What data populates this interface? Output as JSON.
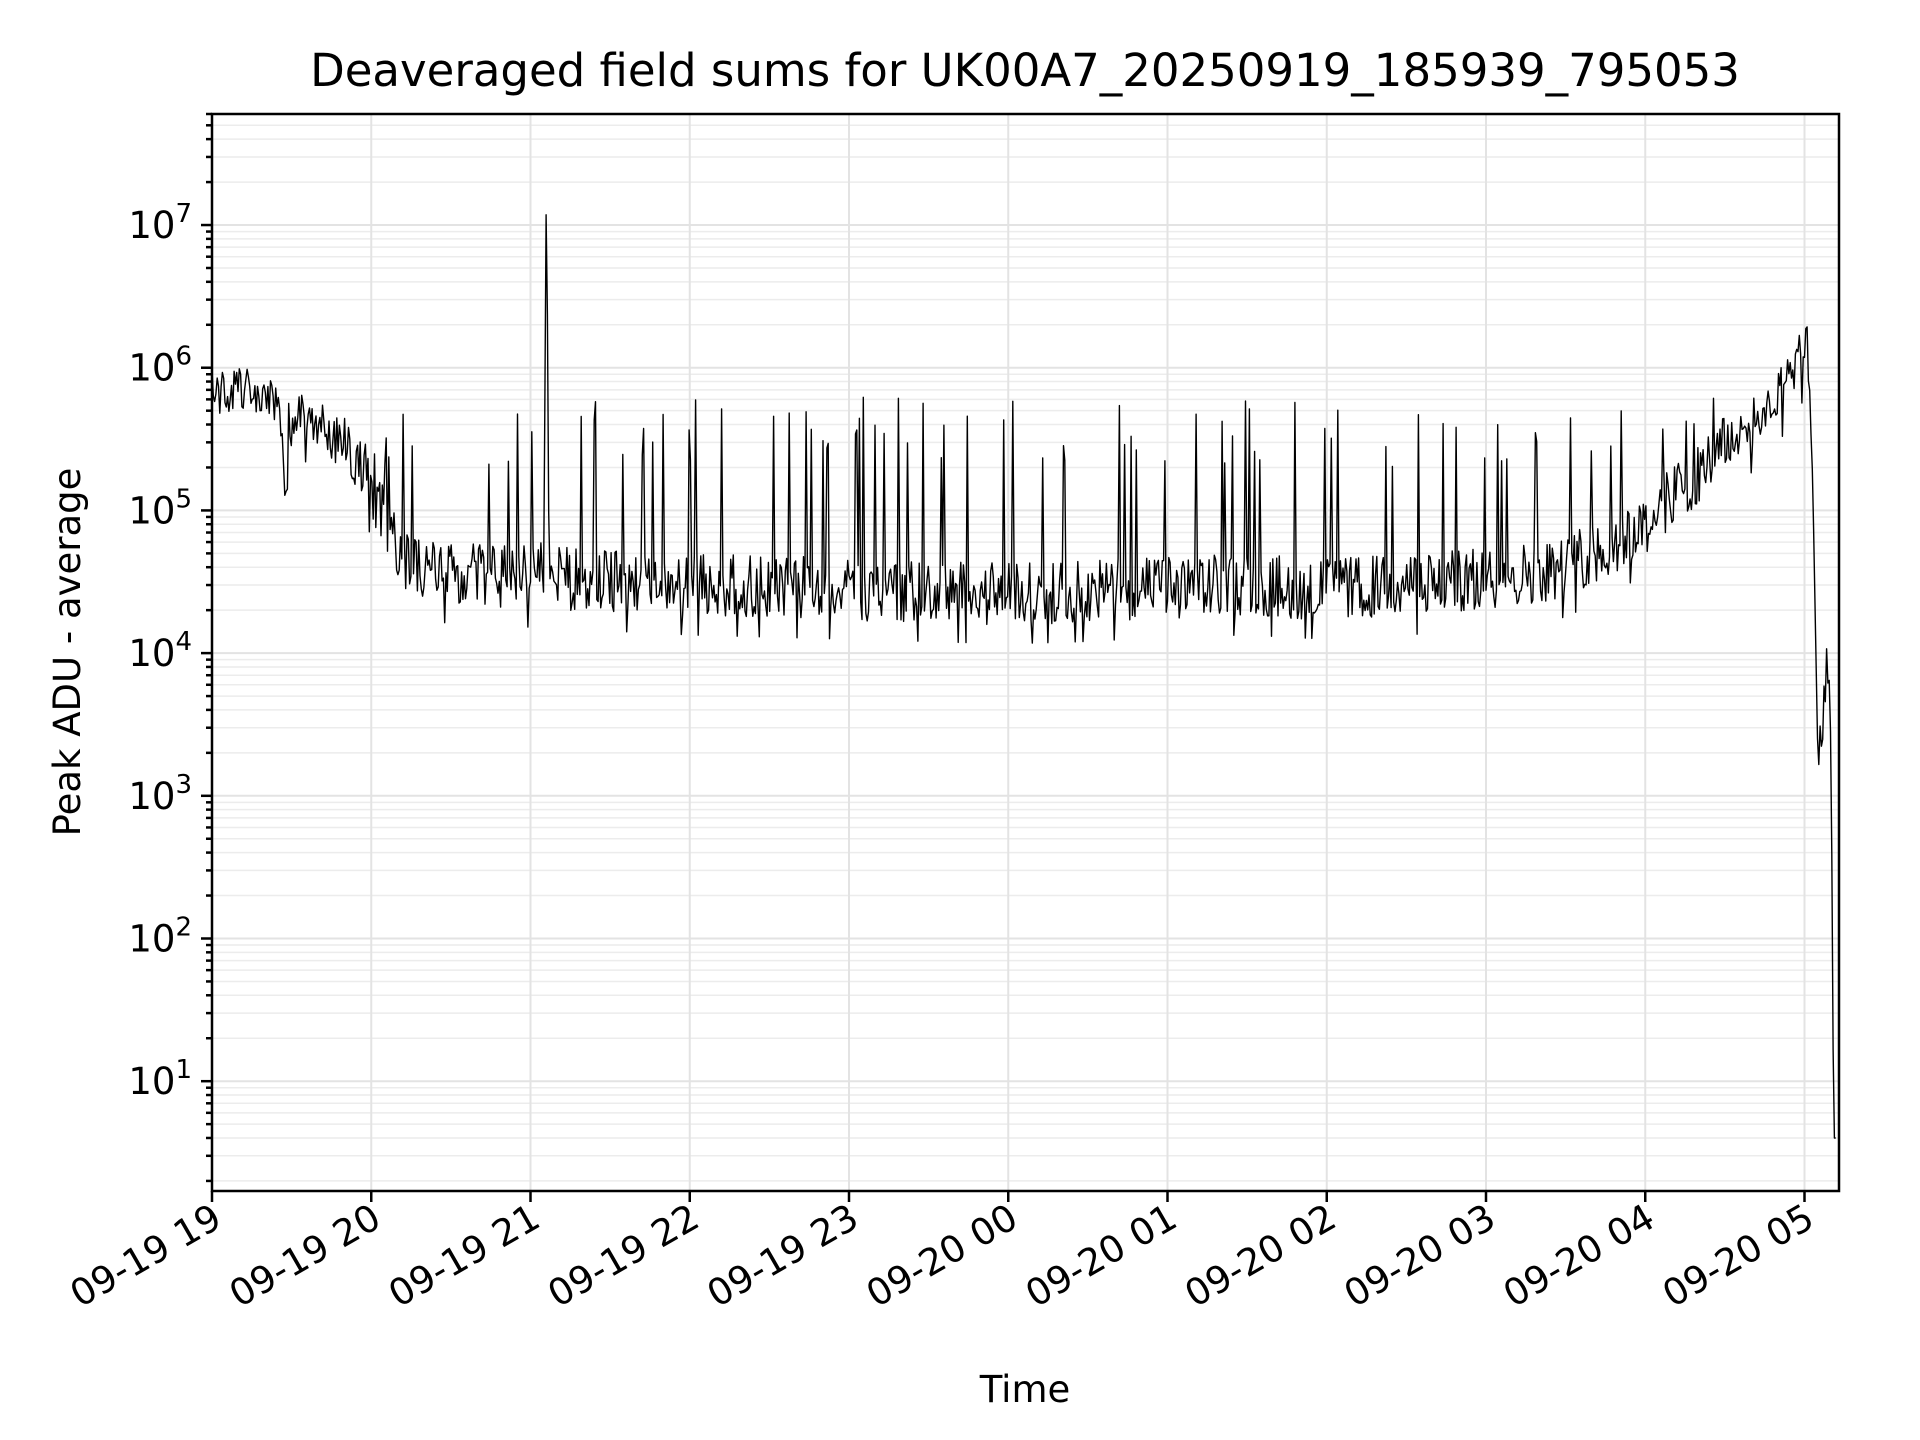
{
  "chart_data": {
    "type": "line",
    "title": "Deaveraged field sums for UK00A7_20250919_185939_795053",
    "xlabel": "Time",
    "ylabel": "Peak ADU - average",
    "yscale": "log",
    "grid": true,
    "legend": "none",
    "xlim": [
      "2025-09-19T19:00",
      "2025-09-20T05:13"
    ],
    "ylim": [
      1.7,
      60000000
    ],
    "x_ticks": [
      "09-19 19",
      "09-19 20",
      "09-19 21",
      "09-19 22",
      "09-19 23",
      "09-20 00",
      "09-20 01",
      "09-20 02",
      "09-20 03",
      "09-20 04",
      "09-20 05"
    ],
    "y_ticks": [
      {
        "base": "10",
        "exp": "1",
        "value": 10
      },
      {
        "base": "10",
        "exp": "2",
        "value": 100
      },
      {
        "base": "10",
        "exp": "3",
        "value": 1000
      },
      {
        "base": "10",
        "exp": "4",
        "value": 10000
      },
      {
        "base": "10",
        "exp": "5",
        "value": 100000
      },
      {
        "base": "10",
        "exp": "6",
        "value": 1000000
      },
      {
        "base": "10",
        "exp": "7",
        "value": 10000000
      }
    ],
    "line_color": "#000000",
    "series": [
      {
        "name": "",
        "x": [
          "2025-09-19T19:00",
          "2025-09-19T19:05",
          "2025-09-19T19:10",
          "2025-09-19T19:15",
          "2025-09-19T19:20",
          "2025-09-19T19:25",
          "2025-09-19T19:28",
          "2025-09-19T19:30",
          "2025-09-19T19:33",
          "2025-09-19T19:37",
          "2025-09-19T19:42",
          "2025-09-19T19:47",
          "2025-09-19T19:52",
          "2025-09-19T19:57",
          "2025-09-19T20:02",
          "2025-09-19T20:06",
          "2025-09-19T20:10",
          "2025-09-19T20:15",
          "2025-09-19T20:22",
          "2025-09-19T20:30",
          "2025-09-19T20:40",
          "2025-09-19T21:00",
          "2025-09-19T21:05",
          "2025-09-19T21:06",
          "2025-09-19T21:07",
          "2025-09-19T21:15",
          "2025-09-19T21:30",
          "2025-09-19T22:00",
          "2025-09-19T22:30",
          "2025-09-19T23:00",
          "2025-09-19T23:30",
          "2025-09-20T00:00",
          "2025-09-20T00:30",
          "2025-09-20T01:00",
          "2025-09-20T01:30",
          "2025-09-20T02:00",
          "2025-09-20T02:30",
          "2025-09-20T03:00",
          "2025-09-20T03:30",
          "2025-09-20T03:45",
          "2025-09-20T04:00",
          "2025-09-20T04:15",
          "2025-09-20T04:30",
          "2025-09-20T04:45",
          "2025-09-20T04:55",
          "2025-09-20T05:01",
          "2025-09-20T05:03",
          "2025-09-20T05:05",
          "2025-09-20T05:07",
          "2025-09-20T05:09",
          "2025-09-20T05:10",
          "2025-09-20T05:11",
          "2025-09-20T05:12"
        ],
        "y": [
          700000,
          650000,
          720000,
          680000,
          600000,
          520000,
          90000,
          380000,
          550000,
          450000,
          400000,
          300000,
          250000,
          200000,
          120000,
          80000,
          55000,
          42000,
          38000,
          36000,
          35000,
          34000,
          40000,
          26000000,
          38000,
          33000,
          32000,
          30000,
          29000,
          28000,
          27000,
          26000,
          27000,
          29000,
          30000,
          28000,
          30000,
          33000,
          40000,
          55000,
          80000,
          150000,
          280000,
          500000,
          900000,
          1500000,
          200000,
          2000,
          3500,
          10000,
          2500,
          4,
          4
        ]
      }
    ]
  }
}
